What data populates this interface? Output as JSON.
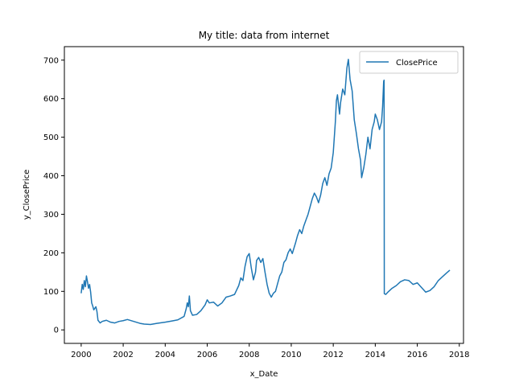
{
  "chart_data": {
    "type": "line",
    "title": "My title: data from internet",
    "xlabel": "x_Date",
    "ylabel": "y_ClosePrice",
    "xlim": [
      1999.2,
      2018.2
    ],
    "ylim": [
      -35,
      735
    ],
    "xticks": [
      2000,
      2002,
      2004,
      2006,
      2008,
      2010,
      2012,
      2014,
      2016,
      2018
    ],
    "xtick_labels": [
      "2000",
      "2002",
      "2004",
      "2006",
      "2008",
      "2010",
      "2012",
      "2014",
      "2016",
      "2018"
    ],
    "yticks": [
      0,
      100,
      200,
      300,
      400,
      500,
      600,
      700
    ],
    "ytick_labels": [
      "0",
      "100",
      "200",
      "300",
      "400",
      "500",
      "600",
      "700"
    ],
    "grid": false,
    "legend": {
      "placement": "top-right",
      "entries": [
        "ClosePrice"
      ]
    },
    "series": [
      {
        "name": "ClosePrice",
        "color": "#1f77b4",
        "points": [
          [
            2000.0,
            95
          ],
          [
            2000.05,
            118
          ],
          [
            2000.1,
            105
          ],
          [
            2000.15,
            128
          ],
          [
            2000.2,
            112
          ],
          [
            2000.25,
            140
          ],
          [
            2000.3,
            125
          ],
          [
            2000.35,
            108
          ],
          [
            2000.4,
            118
          ],
          [
            2000.45,
            98
          ],
          [
            2000.5,
            70
          ],
          [
            2000.55,
            62
          ],
          [
            2000.6,
            52
          ],
          [
            2000.7,
            60
          ],
          [
            2000.75,
            48
          ],
          [
            2000.8,
            25
          ],
          [
            2000.9,
            18
          ],
          [
            2001.0,
            22
          ],
          [
            2001.2,
            25
          ],
          [
            2001.4,
            20
          ],
          [
            2001.6,
            18
          ],
          [
            2001.8,
            22
          ],
          [
            2002.0,
            24
          ],
          [
            2002.2,
            27
          ],
          [
            2002.5,
            22
          ],
          [
            2002.8,
            17
          ],
          [
            2003.0,
            15
          ],
          [
            2003.3,
            14
          ],
          [
            2003.6,
            17
          ],
          [
            2004.0,
            20
          ],
          [
            2004.3,
            23
          ],
          [
            2004.6,
            26
          ],
          [
            2004.9,
            35
          ],
          [
            2005.0,
            55
          ],
          [
            2005.05,
            70
          ],
          [
            2005.1,
            60
          ],
          [
            2005.15,
            88
          ],
          [
            2005.2,
            50
          ],
          [
            2005.3,
            38
          ],
          [
            2005.5,
            40
          ],
          [
            2005.7,
            50
          ],
          [
            2005.9,
            65
          ],
          [
            2006.0,
            78
          ],
          [
            2006.1,
            70
          ],
          [
            2006.3,
            72
          ],
          [
            2006.5,
            62
          ],
          [
            2006.7,
            70
          ],
          [
            2006.9,
            85
          ],
          [
            2007.1,
            88
          ],
          [
            2007.3,
            92
          ],
          [
            2007.5,
            115
          ],
          [
            2007.6,
            135
          ],
          [
            2007.7,
            128
          ],
          [
            2007.8,
            165
          ],
          [
            2007.9,
            190
          ],
          [
            2008.0,
            198
          ],
          [
            2008.1,
            160
          ],
          [
            2008.2,
            130
          ],
          [
            2008.3,
            150
          ],
          [
            2008.35,
            180
          ],
          [
            2008.45,
            188
          ],
          [
            2008.55,
            175
          ],
          [
            2008.65,
            185
          ],
          [
            2008.75,
            150
          ],
          [
            2008.85,
            118
          ],
          [
            2008.95,
            95
          ],
          [
            2009.05,
            85
          ],
          [
            2009.15,
            95
          ],
          [
            2009.25,
            100
          ],
          [
            2009.35,
            120
          ],
          [
            2009.45,
            140
          ],
          [
            2009.55,
            150
          ],
          [
            2009.65,
            175
          ],
          [
            2009.75,
            182
          ],
          [
            2009.85,
            200
          ],
          [
            2009.95,
            210
          ],
          [
            2010.05,
            198
          ],
          [
            2010.2,
            225
          ],
          [
            2010.3,
            245
          ],
          [
            2010.4,
            260
          ],
          [
            2010.5,
            250
          ],
          [
            2010.6,
            270
          ],
          [
            2010.7,
            285
          ],
          [
            2010.8,
            300
          ],
          [
            2010.9,
            320
          ],
          [
            2011.0,
            340
          ],
          [
            2011.1,
            355
          ],
          [
            2011.2,
            345
          ],
          [
            2011.3,
            330
          ],
          [
            2011.4,
            350
          ],
          [
            2011.5,
            380
          ],
          [
            2011.6,
            395
          ],
          [
            2011.7,
            375
          ],
          [
            2011.8,
            405
          ],
          [
            2011.9,
            420
          ],
          [
            2012.0,
            460
          ],
          [
            2012.1,
            540
          ],
          [
            2012.15,
            595
          ],
          [
            2012.2,
            610
          ],
          [
            2012.3,
            560
          ],
          [
            2012.35,
            590
          ],
          [
            2012.45,
            625
          ],
          [
            2012.55,
            610
          ],
          [
            2012.65,
            680
          ],
          [
            2012.72,
            702
          ],
          [
            2012.8,
            650
          ],
          [
            2012.9,
            620
          ],
          [
            2013.0,
            545
          ],
          [
            2013.1,
            510
          ],
          [
            2013.2,
            470
          ],
          [
            2013.3,
            440
          ],
          [
            2013.35,
            395
          ],
          [
            2013.45,
            420
          ],
          [
            2013.55,
            455
          ],
          [
            2013.65,
            500
          ],
          [
            2013.75,
            470
          ],
          [
            2013.85,
            520
          ],
          [
            2013.95,
            540
          ],
          [
            2014.0,
            560
          ],
          [
            2014.1,
            545
          ],
          [
            2014.2,
            520
          ],
          [
            2014.3,
            540
          ],
          [
            2014.35,
            580
          ],
          [
            2014.4,
            645
          ],
          [
            2014.42,
            648
          ],
          [
            2014.43,
            94
          ],
          [
            2014.5,
            92
          ],
          [
            2014.6,
            98
          ],
          [
            2014.8,
            108
          ],
          [
            2015.0,
            115
          ],
          [
            2015.2,
            125
          ],
          [
            2015.4,
            130
          ],
          [
            2015.6,
            128
          ],
          [
            2015.8,
            118
          ],
          [
            2016.0,
            122
          ],
          [
            2016.2,
            110
          ],
          [
            2016.4,
            98
          ],
          [
            2016.6,
            102
          ],
          [
            2016.8,
            112
          ],
          [
            2017.0,
            128
          ],
          [
            2017.2,
            138
          ],
          [
            2017.4,
            148
          ],
          [
            2017.55,
            155
          ]
        ]
      }
    ]
  }
}
